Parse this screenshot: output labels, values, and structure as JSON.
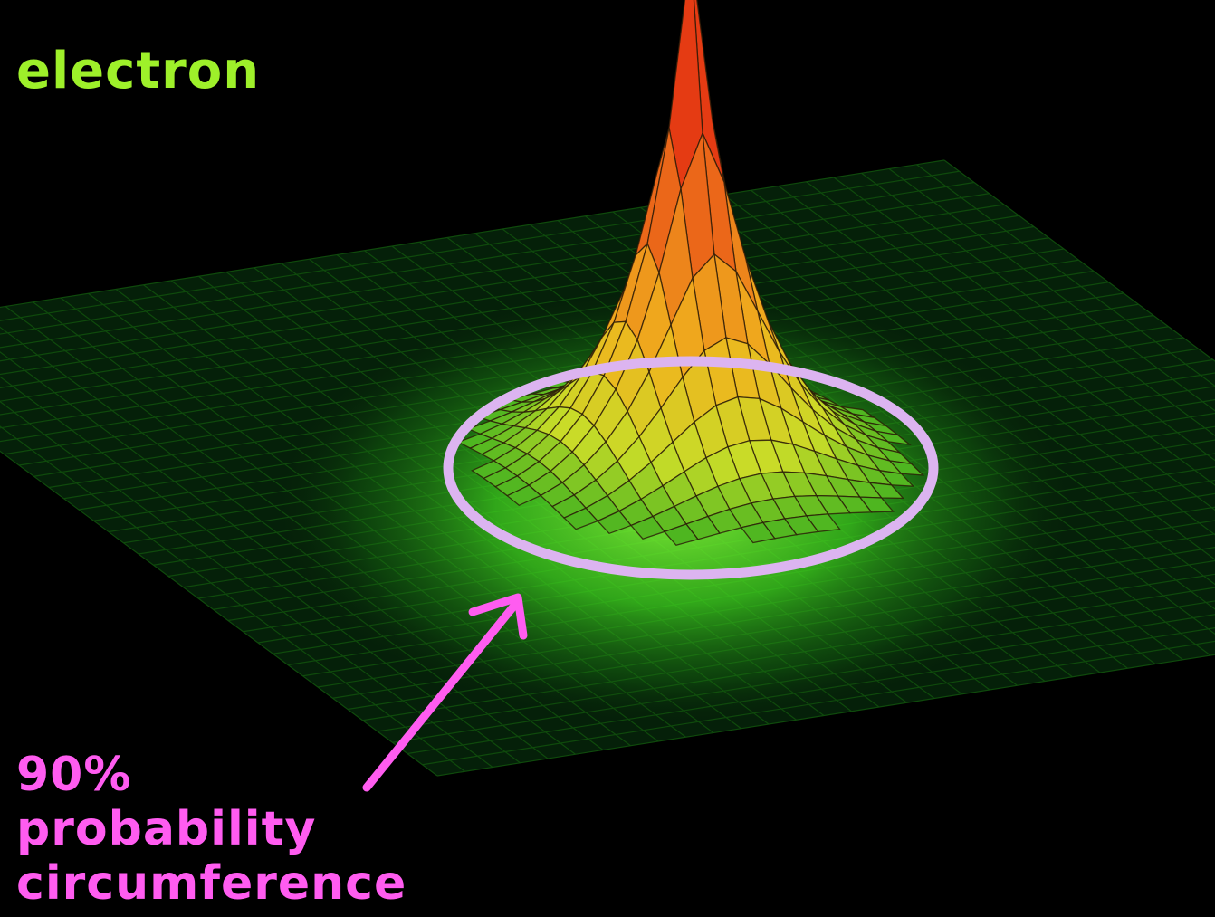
{
  "labels": {
    "top_word": "electron",
    "caption_line1": "90%",
    "caption_line2": "probability",
    "caption_line3": "circumference"
  },
  "colors": {
    "background": "#000000",
    "top_label": "#9ef02a",
    "caption": "#ff5cf0",
    "ring": "#dcb4f0",
    "arrow": "#ff5cf0",
    "surface_low": "#1fae1f",
    "surface_mid": "#f0d020",
    "surface_high": "#e02010"
  },
  "figure": {
    "type": "3d-surface",
    "description_shape": "radial peak (cusp) over flat grid",
    "highlight": "ring at 90% probability boundary",
    "arrow_points_to": "ring"
  }
}
